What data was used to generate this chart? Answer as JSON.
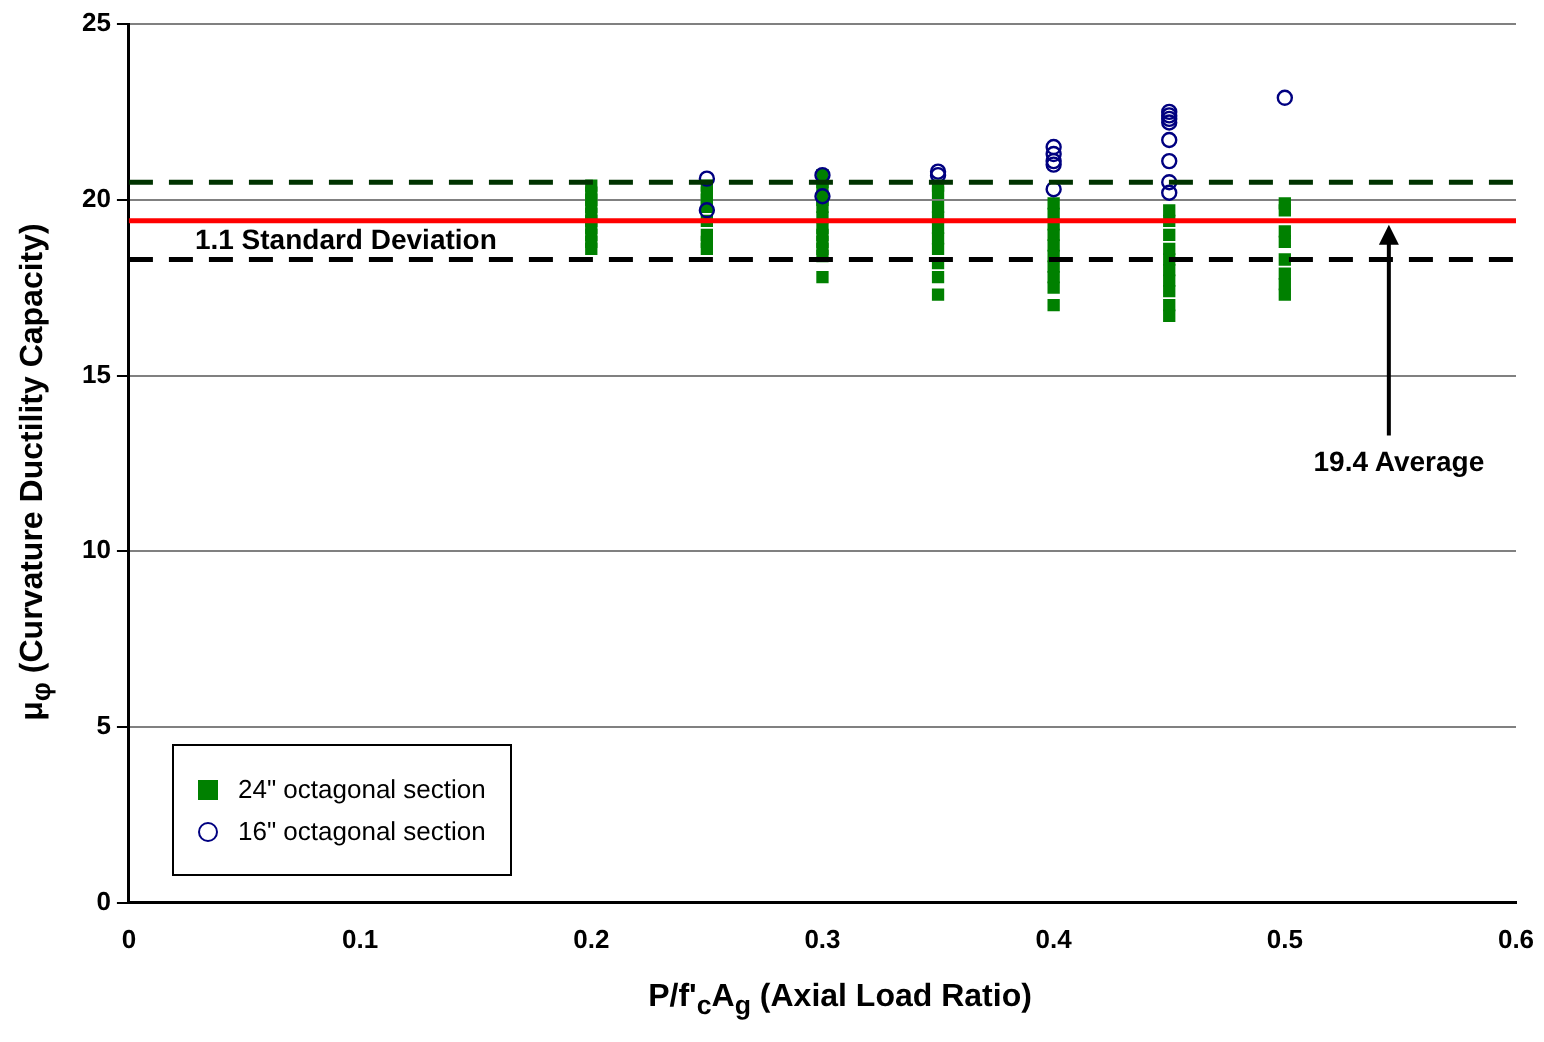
{
  "chart_data": {
    "type": "scatter",
    "xlabel": "P/f'$_{c}$A$_{g}$ (Axial Load Ratio)",
    "ylabel": "μ$_{φ}$ (Curvature Ductility Capacity)",
    "xlim": [
      0,
      0.6
    ],
    "xticks": [
      0,
      0.1,
      0.2,
      0.3,
      0.4,
      0.5,
      0.6
    ],
    "ylim": [
      0,
      25
    ],
    "yticks": [
      0,
      5,
      10,
      15,
      20,
      25
    ],
    "grid": "y",
    "legend": "bottom left",
    "series": [
      {
        "name": "24\" octagonal section",
        "color": "#008000",
        "marker": "square",
        "x": [
          0.2,
          0.2,
          0.2,
          0.2,
          0.2,
          0.2,
          0.2,
          0.2,
          0.2,
          0.2,
          0.25,
          0.25,
          0.25,
          0.25,
          0.25,
          0.25,
          0.25,
          0.25,
          0.3,
          0.3,
          0.3,
          0.3,
          0.3,
          0.3,
          0.3,
          0.3,
          0.3,
          0.3,
          0.3,
          0.3,
          0.35,
          0.35,
          0.35,
          0.35,
          0.35,
          0.35,
          0.35,
          0.35,
          0.35,
          0.35,
          0.4,
          0.4,
          0.4,
          0.4,
          0.4,
          0.4,
          0.4,
          0.4,
          0.4,
          0.4,
          0.45,
          0.45,
          0.45,
          0.45,
          0.45,
          0.45,
          0.45,
          0.45,
          0.45,
          0.45,
          0.5,
          0.5,
          0.5,
          0.5,
          0.5,
          0.5,
          0.5,
          0.5
        ],
        "values": [
          20.4,
          20.2,
          20.0,
          19.8,
          19.6,
          19.4,
          19.2,
          19.0,
          18.8,
          18.6,
          20.4,
          20.2,
          20.0,
          19.8,
          19.4,
          19.0,
          18.8,
          18.6,
          20.7,
          20.5,
          20.3,
          20.0,
          19.8,
          19.5,
          19.2,
          19.0,
          18.8,
          18.6,
          18.4,
          17.8,
          20.4,
          20.2,
          19.8,
          19.5,
          19.2,
          18.9,
          18.6,
          18.2,
          17.8,
          17.3,
          19.9,
          19.6,
          19.3,
          19.0,
          18.7,
          18.4,
          18.1,
          17.8,
          17.5,
          17.0,
          19.7,
          19.4,
          19.0,
          18.6,
          18.3,
          18.0,
          17.7,
          17.4,
          17.0,
          16.7,
          19.9,
          19.7,
          19.1,
          18.8,
          18.3,
          17.9,
          17.6,
          17.3
        ]
      },
      {
        "name": "16\" octagonal section",
        "color": "#000080",
        "marker": "circle",
        "x": [
          0.25,
          0.25,
          0.3,
          0.3,
          0.35,
          0.35,
          0.4,
          0.4,
          0.4,
          0.4,
          0.4,
          0.45,
          0.45,
          0.45,
          0.45,
          0.45,
          0.45,
          0.45,
          0.45,
          0.5
        ],
        "values": [
          20.6,
          19.7,
          20.7,
          20.1,
          20.8,
          20.7,
          21.5,
          21.3,
          21.1,
          21.0,
          20.3,
          22.5,
          22.4,
          22.3,
          22.2,
          21.7,
          21.1,
          20.5,
          20.2,
          22.9
        ]
      }
    ],
    "ref_lines": [
      {
        "axis": "y",
        "value": 20.5,
        "color": "#003300",
        "line_style": "dashed"
      },
      {
        "axis": "y",
        "value": 19.4,
        "color": "#ff0000",
        "line_style": "solid",
        "label": "19.4 Average"
      },
      {
        "axis": "y",
        "value": 18.3,
        "color": "#000000",
        "line_style": "dashed",
        "label": "1.1 Standard Deviation"
      }
    ]
  }
}
